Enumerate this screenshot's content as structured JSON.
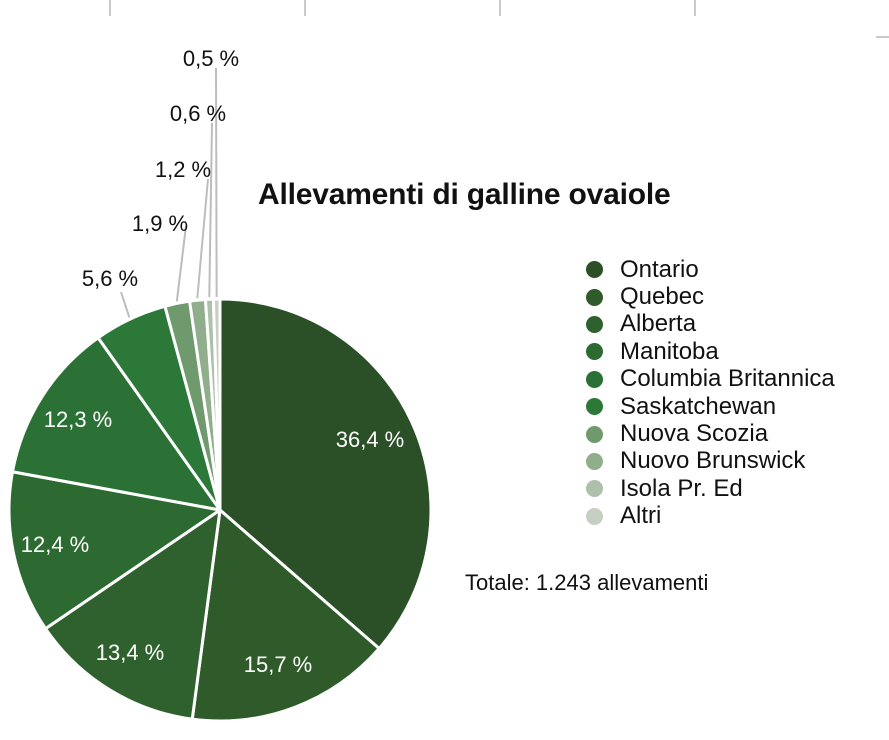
{
  "chart_data": {
    "type": "pie",
    "title": "Allevamenti di galline ovaiole",
    "categories": [
      "Ontario",
      "Quebec",
      "Alberta",
      "Manitoba",
      "Columbia Britannica",
      "Saskatchewan",
      "Nuova Scozia",
      "Nuovo Brunswick",
      "Isola Pr. Ed",
      "Altri"
    ],
    "values": [
      36.4,
      15.7,
      13.4,
      12.4,
      12.3,
      5.6,
      1.9,
      1.2,
      0.6,
      0.5
    ],
    "labels": [
      "36,4 %",
      "15,7 %",
      "13,4 %",
      "12,4 %",
      "12,3 %",
      "5,6 %",
      "1,9 %",
      "1,2 %",
      "0,6 %",
      "0,5 %"
    ],
    "colors": [
      "#2b4f27",
      "#2f5a2a",
      "#2e612d",
      "#2c6a31",
      "#2b7135",
      "#2c7838",
      "#6f9a6d",
      "#90ad8c",
      "#aebfab",
      "#c6d0c2"
    ],
    "legend_position": "right",
    "note": "Totale: 1.243 allevamenti"
  }
}
